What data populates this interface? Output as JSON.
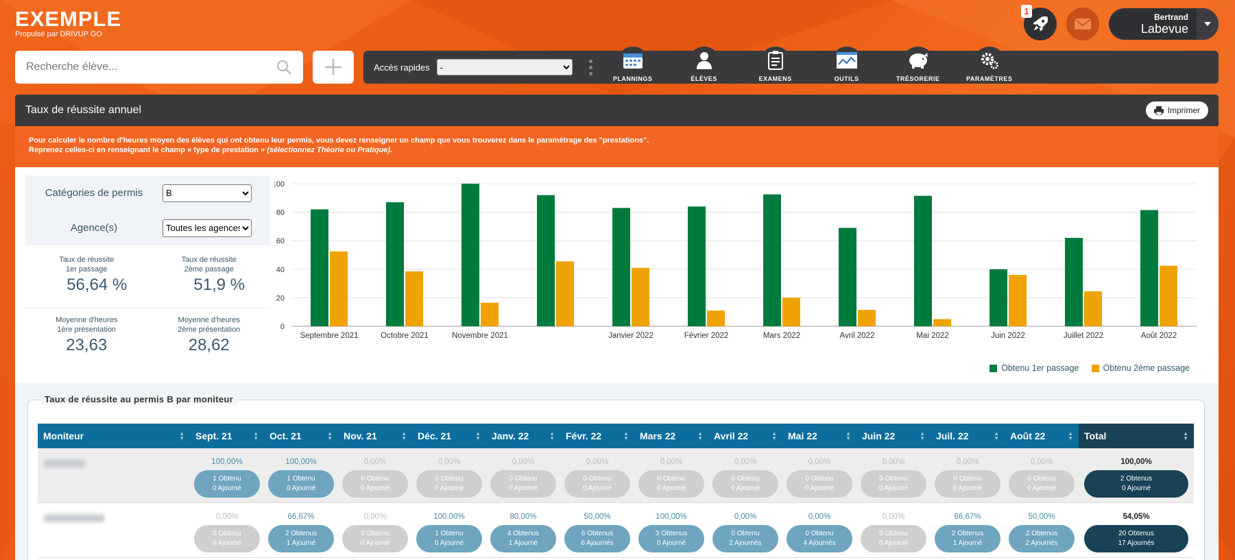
{
  "brand": {
    "name": "EXEMPLE",
    "sub": "Propulsé par DRIVUP GO"
  },
  "notifications": {
    "count": "1"
  },
  "user": {
    "first": "Bertrand",
    "last": "Labevue"
  },
  "search": {
    "placeholder": "Recherche élève..."
  },
  "quick": {
    "label": "Accès rapides",
    "selected": "-"
  },
  "nav": [
    {
      "label": "PLANNINGS",
      "icon": "calendar-icon"
    },
    {
      "label": "ÉLÈVES",
      "icon": "user-icon"
    },
    {
      "label": "EXAMENS",
      "icon": "clipboard-icon"
    },
    {
      "label": "OUTILS",
      "icon": "chart-icon"
    },
    {
      "label": "TRÉSORERIE",
      "icon": "piggy-bank-icon"
    },
    {
      "label": "PARAMÈTRES",
      "icon": "gears-icon"
    }
  ],
  "panel": {
    "title": "Taux de réussite annuel",
    "print_label": "Imprimer"
  },
  "warning": {
    "line1": "Pour calculer le nombre d'heures moyen des élèves qui ont obtenu leur permis, vous devez renseigner un champ que vous trouverez dans le paramétrage des \"prestations\".",
    "line2_a": "Reprenez celles-ci en renseignant le champ « type de prestation » ",
    "line2_b": "(sélectionnez ",
    "line2_c": "Théorie",
    "line2_d": " ou ",
    "line2_e": "Pratique",
    "line2_f": ")."
  },
  "filters": {
    "category_label": "Catégories de permis",
    "category_value": "B",
    "agency_label": "Agence(s)",
    "agency_value": "Toutes les agences"
  },
  "kpis": {
    "rate1_l1": "Taux de réussite",
    "rate1_l2": "1er passage",
    "rate1_val": "56,64 %",
    "rate2_l1": "Taux de réussite",
    "rate2_l2": "2ème passage",
    "rate2_val": "51,9 %",
    "hours1_l1": "Moyenne d'heures",
    "hours1_l2": "1ère présentation",
    "hours1_val": "23,63",
    "hours2_l1": "Moyenne d'heures",
    "hours2_l2": "2ème présentation",
    "hours2_val": "28,62"
  },
  "chart_data": {
    "type": "bar",
    "categories": [
      "Septembre 2021",
      "Octobre 2021",
      "Novembre 2021",
      "",
      "Janvier 2022",
      "Février 2022",
      "Mars 2022",
      "Avril 2022",
      "Mai 2022",
      "Juin 2022",
      "Juillet 2022",
      "Août 2022"
    ],
    "series": [
      {
        "name": "Obtenu 1er passage",
        "color": "#007a3d",
        "values": [
          82,
          87,
          100,
          92,
          83,
          84,
          92.5,
          69,
          91.5,
          40,
          62,
          81.5
        ]
      },
      {
        "name": "Obtenu 2ème passage",
        "color": "#f0a202",
        "values": [
          52.5,
          38.5,
          16.5,
          45.5,
          41,
          11,
          20,
          11.5,
          5,
          36,
          24.5,
          42.5
        ]
      }
    ],
    "yticks": [
      "0",
      "20",
      "40",
      "60",
      "80",
      "100"
    ],
    "ylim": [
      0,
      100
    ],
    "grid": true,
    "legend": "bottom-right"
  },
  "moniteur_table": {
    "title": "Taux de réussite au permis B par moniteur",
    "headers": [
      "Moniteur",
      "Sept. 21",
      "Oct. 21",
      "Nov. 21",
      "Déc. 21",
      "Janv. 22",
      "Févr. 22",
      "Mars 22",
      "Avril 22",
      "Mai 22",
      "Juin 22",
      "Juil. 22",
      "Août 22",
      "Total"
    ],
    "rows": [
      {
        "cells": [
          {
            "pct": "100,00%",
            "l1": "1 Obtenu",
            "l2": "0 Ajourné",
            "active": true
          },
          {
            "pct": "100,00%",
            "l1": "1 Obtenu",
            "l2": "0 Ajourné",
            "active": true
          },
          {
            "pct": "0,00%",
            "l1": "0 Obtenu",
            "l2": "0 Ajourné",
            "active": false
          },
          {
            "pct": "0,00%",
            "l1": "0 Obtenu",
            "l2": "0 Ajourné",
            "active": false
          },
          {
            "pct": "0,00%",
            "l1": "0 Obtenu",
            "l2": "0 Ajourné",
            "active": false
          },
          {
            "pct": "0,00%",
            "l1": "0 Obtenu",
            "l2": "0 Ajourné",
            "active": false
          },
          {
            "pct": "0,00%",
            "l1": "0 Obtenu",
            "l2": "0 Ajourné",
            "active": false
          },
          {
            "pct": "0,00%",
            "l1": "0 Obtenu",
            "l2": "0 Ajourné",
            "active": false
          },
          {
            "pct": "0,00%",
            "l1": "0 Obtenu",
            "l2": "0 Ajourné",
            "active": false
          },
          {
            "pct": "0,00%",
            "l1": "0 Obtenu",
            "l2": "0 Ajourné",
            "active": false
          },
          {
            "pct": "0,00%",
            "l1": "0 Obtenu",
            "l2": "0 Ajourné",
            "active": false
          },
          {
            "pct": "0,00%",
            "l1": "0 Obtenu",
            "l2": "0 Ajourné",
            "active": false
          }
        ],
        "total": {
          "pct": "100,00%",
          "l1": "2 Obtenus",
          "l2": "0 Ajourné"
        }
      },
      {
        "cells": [
          {
            "pct": "0,00%",
            "l1": "0 Obtenu",
            "l2": "0 Ajourné",
            "active": false
          },
          {
            "pct": "66,67%",
            "l1": "2 Obtenus",
            "l2": "1 Ajourné",
            "active": true
          },
          {
            "pct": "0,00%",
            "l1": "0 Obtenu",
            "l2": "0 Ajourné",
            "active": false
          },
          {
            "pct": "100,00%",
            "l1": "1 Obtenu",
            "l2": "0 Ajourné",
            "active": true
          },
          {
            "pct": "80,00%",
            "l1": "4 Obtenus",
            "l2": "1 Ajourné",
            "active": true
          },
          {
            "pct": "50,00%",
            "l1": "6 Obtenus",
            "l2": "6 Ajournés",
            "active": true
          },
          {
            "pct": "100,00%",
            "l1": "3 Obtenus",
            "l2": "0 Ajourné",
            "active": true
          },
          {
            "pct": "0,00%",
            "l1": "0 Obtenu",
            "l2": "2 Ajournés",
            "active": true
          },
          {
            "pct": "0,00%",
            "l1": "0 Obtenu",
            "l2": "4 Ajournés",
            "active": true
          },
          {
            "pct": "0,00%",
            "l1": "0 Obtenu",
            "l2": "0 Ajourné",
            "active": false
          },
          {
            "pct": "66,67%",
            "l1": "2 Obtenus",
            "l2": "1 Ajourné",
            "active": true
          },
          {
            "pct": "50,00%",
            "l1": "2 Obtenus",
            "l2": "2 Ajournés",
            "active": true
          }
        ],
        "total": {
          "pct": "54,05%",
          "l1": "20 Obtenus",
          "l2": "17 Ajournés"
        }
      }
    ]
  }
}
